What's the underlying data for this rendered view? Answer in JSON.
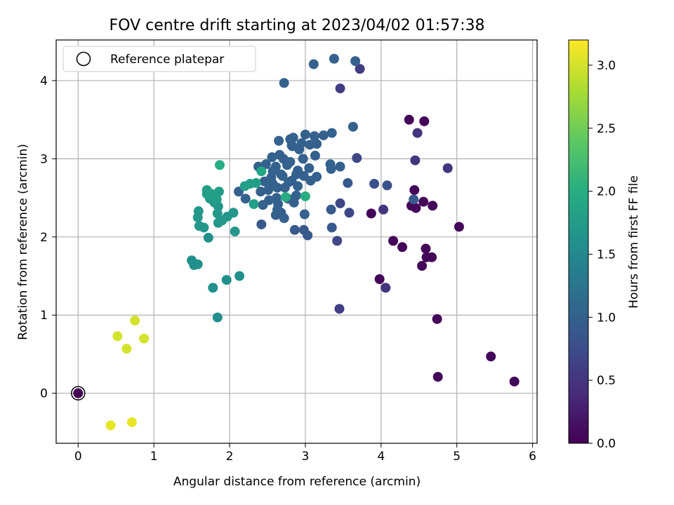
{
  "chart_data": {
    "type": "scatter",
    "title": "FOV centre drift starting at 2023/04/02 01:57:38",
    "xlabel": "Angular distance from reference (arcmin)",
    "ylabel": "Rotation from reference (arcmin)",
    "xlim": [
      -0.29,
      6.06
    ],
    "ylim": [
      -0.64,
      4.52
    ],
    "xticks": [
      0,
      1,
      2,
      3,
      4,
      5,
      6
    ],
    "yticks": [
      0,
      1,
      2,
      3,
      4
    ],
    "grid": true,
    "legend": {
      "position": "top-left",
      "entries": [
        "Reference platepar"
      ]
    },
    "reference_point": {
      "x": 0,
      "y": 0
    },
    "colorbar": {
      "label": "Hours from first FF file",
      "range": [
        0.0,
        3.2
      ],
      "ticks": [
        0.0,
        0.5,
        1.0,
        1.5,
        2.0,
        2.5,
        3.0
      ],
      "tick_labels": [
        "0.0",
        "0.5",
        "1.0",
        "1.5",
        "2.0",
        "2.5",
        "3.0"
      ],
      "colormap": "viridis"
    },
    "series": [
      {
        "points": [
          [
            0.0,
            0.0,
            0.0
          ],
          [
            3.87,
            2.3,
            0.05
          ],
          [
            3.98,
            1.46,
            0.05
          ],
          [
            4.16,
            1.95,
            0.05
          ],
          [
            4.28,
            1.87,
            0.05
          ],
          [
            4.37,
            3.5,
            0.05
          ],
          [
            4.57,
            3.48,
            0.05
          ],
          [
            4.4,
            2.4,
            0.05
          ],
          [
            4.46,
            2.37,
            0.05
          ],
          [
            4.56,
            2.45,
            0.05
          ],
          [
            4.68,
            2.4,
            0.05
          ],
          [
            4.44,
            2.6,
            0.05
          ],
          [
            4.59,
            1.85,
            0.05
          ],
          [
            4.6,
            1.74,
            0.05
          ],
          [
            4.67,
            1.74,
            0.05
          ],
          [
            4.54,
            1.63,
            0.05
          ],
          [
            4.74,
            0.95,
            0.05
          ],
          [
            4.75,
            0.21,
            0.05
          ],
          [
            5.03,
            2.13,
            0.05
          ],
          [
            5.45,
            0.47,
            0.05
          ],
          [
            5.76,
            0.15,
            0.05
          ],
          [
            4.06,
            1.35,
            0.5
          ],
          [
            4.03,
            2.35,
            0.5
          ],
          [
            4.48,
            3.33,
            0.5
          ],
          [
            4.45,
            2.98,
            0.5
          ],
          [
            4.88,
            2.88,
            0.5
          ],
          [
            3.72,
            4.15,
            0.6
          ],
          [
            3.46,
            3.9,
            0.6
          ],
          [
            3.45,
            1.08,
            0.6
          ],
          [
            3.42,
            1.95,
            0.7
          ],
          [
            3.68,
            3.01,
            0.7
          ],
          [
            3.58,
            2.31,
            0.7
          ],
          [
            3.46,
            2.43,
            0.7
          ],
          [
            3.91,
            2.68,
            0.8
          ],
          [
            4.08,
            2.66,
            0.8
          ],
          [
            4.43,
            2.48,
            0.9
          ],
          [
            3.56,
            2.69,
            0.9
          ],
          [
            3.34,
            2.35,
            0.9
          ],
          [
            3.35,
            2.12,
            0.9
          ],
          [
            3.03,
            2.02,
            0.9
          ],
          [
            2.98,
            2.09,
            0.9
          ],
          [
            2.86,
            2.09,
            0.9
          ],
          [
            2.42,
            2.16,
            0.9
          ],
          [
            3.38,
            4.28,
            1.0
          ],
          [
            3.66,
            4.25,
            1.0
          ],
          [
            3.11,
            4.21,
            1.0
          ],
          [
            2.72,
            3.97,
            1.0
          ],
          [
            3.63,
            3.41,
            1.0
          ],
          [
            3.35,
            3.33,
            1.0
          ],
          [
            3.24,
            3.3,
            1.0
          ],
          [
            3.12,
            3.29,
            1.0
          ],
          [
            3.0,
            3.31,
            1.0
          ],
          [
            2.84,
            3.27,
            1.0
          ],
          [
            2.8,
            3.25,
            1.0
          ],
          [
            2.65,
            3.23,
            1.0
          ],
          [
            2.95,
            3.2,
            1.0
          ],
          [
            3.06,
            3.18,
            1.0
          ],
          [
            3.15,
            3.19,
            1.0
          ],
          [
            2.83,
            3.16,
            1.0
          ],
          [
            2.92,
            3.12,
            1.0
          ],
          [
            3.13,
            3.04,
            1.0
          ],
          [
            2.97,
            3.0,
            1.0
          ],
          [
            2.66,
            3.05,
            1.0
          ],
          [
            2.56,
            3.02,
            1.0
          ],
          [
            2.71,
            3.0,
            1.0
          ],
          [
            2.8,
            2.96,
            1.0
          ],
          [
            3.33,
            2.93,
            1.0
          ],
          [
            3.46,
            2.9,
            1.0
          ],
          [
            3.34,
            2.87,
            1.0
          ],
          [
            3.05,
            2.88,
            1.0
          ],
          [
            2.9,
            2.85,
            1.0
          ],
          [
            2.76,
            2.92,
            1.0
          ],
          [
            2.61,
            2.9,
            1.0
          ],
          [
            2.48,
            2.93,
            1.0
          ],
          [
            2.38,
            2.9,
            1.0
          ],
          [
            2.88,
            2.8,
            1.0
          ],
          [
            2.98,
            2.78,
            1.0
          ],
          [
            3.15,
            2.77,
            1.0
          ],
          [
            3.07,
            2.72,
            1.0
          ],
          [
            2.7,
            2.78,
            1.0
          ],
          [
            2.55,
            2.76,
            1.0
          ],
          [
            2.46,
            2.71,
            1.0
          ],
          [
            2.57,
            2.68,
            1.0
          ],
          [
            2.82,
            2.72,
            1.0
          ],
          [
            2.9,
            2.65,
            1.0
          ],
          [
            2.73,
            2.63,
            1.0
          ],
          [
            2.63,
            2.63,
            1.0
          ],
          [
            2.51,
            2.6,
            1.0
          ],
          [
            2.41,
            2.58,
            1.0
          ],
          [
            2.88,
            2.53,
            1.0
          ],
          [
            2.77,
            2.49,
            1.0
          ],
          [
            2.62,
            2.5,
            1.0
          ],
          [
            2.52,
            2.47,
            1.0
          ],
          [
            2.85,
            2.44,
            1.0
          ],
          [
            2.64,
            2.42,
            1.0
          ],
          [
            2.44,
            2.41,
            1.0
          ],
          [
            2.63,
            2.35,
            1.0
          ],
          [
            2.68,
            2.31,
            1.0
          ],
          [
            2.61,
            2.28,
            1.0
          ],
          [
            2.72,
            2.24,
            1.0
          ],
          [
            2.99,
            2.29,
            1.0
          ],
          [
            2.12,
            2.58,
            1.0
          ],
          [
            2.21,
            2.49,
            1.0
          ],
          [
            2.82,
            3.17,
            1.0
          ],
          [
            2.68,
            2.8,
            1.0
          ],
          [
            2.57,
            2.84,
            1.0
          ],
          [
            2.78,
            2.7,
            1.0
          ],
          [
            1.5,
            1.7,
            1.6
          ],
          [
            1.53,
            1.64,
            1.6
          ],
          [
            1.58,
            1.65,
            1.6
          ],
          [
            1.72,
            1.99,
            1.6
          ],
          [
            1.78,
            1.35,
            1.6
          ],
          [
            1.96,
            1.45,
            1.6
          ],
          [
            2.13,
            1.5,
            1.6
          ],
          [
            1.84,
            0.97,
            1.6
          ],
          [
            1.6,
            2.14,
            1.7
          ],
          [
            1.66,
            2.12,
            1.7
          ],
          [
            1.58,
            2.25,
            1.7
          ],
          [
            1.59,
            2.33,
            1.7
          ],
          [
            1.74,
            2.49,
            1.7
          ],
          [
            1.8,
            2.44,
            1.7
          ],
          [
            1.85,
            2.39,
            1.7
          ],
          [
            1.84,
            2.3,
            1.7
          ],
          [
            1.85,
            2.18,
            1.7
          ],
          [
            1.9,
            2.21,
            1.7
          ],
          [
            1.97,
            2.26,
            1.7
          ],
          [
            2.05,
            2.31,
            1.7
          ],
          [
            2.07,
            2.07,
            1.7
          ],
          [
            1.7,
            2.55,
            1.8
          ],
          [
            1.76,
            2.55,
            1.8
          ],
          [
            1.86,
            2.58,
            1.8
          ],
          [
            1.7,
            2.6,
            1.8
          ],
          [
            1.83,
            2.48,
            1.8
          ],
          [
            2.2,
            2.65,
            1.8
          ],
          [
            2.27,
            2.68,
            1.8
          ],
          [
            2.35,
            2.69,
            1.8
          ],
          [
            2.32,
            2.42,
            1.8
          ],
          [
            2.42,
            2.84,
            1.9
          ],
          [
            1.87,
            2.92,
            2.0
          ],
          [
            3.0,
            2.52,
            2.0
          ],
          [
            2.74,
            2.51,
            2.0
          ],
          [
            0.52,
            0.73,
            3.0
          ],
          [
            0.64,
            0.57,
            3.0
          ],
          [
            0.75,
            0.93,
            3.0
          ],
          [
            0.87,
            0.7,
            3.0
          ],
          [
            0.43,
            -0.41,
            3.1
          ],
          [
            0.71,
            -0.37,
            3.1
          ]
        ]
      }
    ]
  }
}
